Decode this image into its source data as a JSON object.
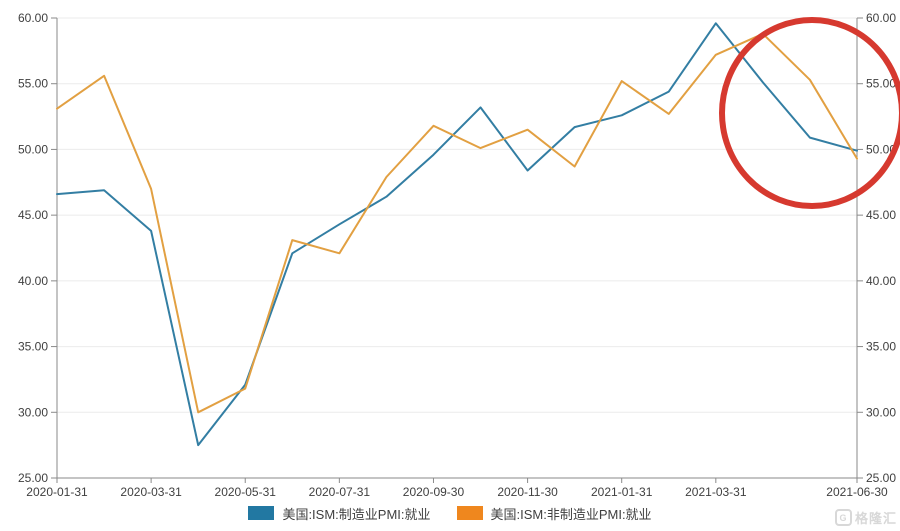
{
  "chart_data": {
    "type": "line",
    "x": [
      "2020-01-31",
      "2020-02-29",
      "2020-03-31",
      "2020-04-30",
      "2020-05-31",
      "2020-06-30",
      "2020-07-31",
      "2020-08-31",
      "2020-09-30",
      "2020-10-31",
      "2020-11-30",
      "2020-12-31",
      "2021-01-31",
      "2021-02-28",
      "2021-03-31",
      "2021-04-30",
      "2021-05-31",
      "2021-06-30"
    ],
    "series": [
      {
        "name": "美国:ISM:制造业PMI:就业",
        "line_color": "#337ea3",
        "swatch_color": "#2278a2",
        "values": [
          46.6,
          46.9,
          43.8,
          27.5,
          32.1,
          42.1,
          44.3,
          46.4,
          49.6,
          53.2,
          48.4,
          51.7,
          52.6,
          54.4,
          59.6,
          55.1,
          50.9,
          49.9
        ]
      },
      {
        "name": "美国:ISM:非制造业PMI:就业",
        "line_color": "#e2a042",
        "swatch_color": "#ef871e",
        "values": [
          53.1,
          55.6,
          47.0,
          30.0,
          31.8,
          43.1,
          42.1,
          47.9,
          51.8,
          50.1,
          51.5,
          48.7,
          55.2,
          52.7,
          57.2,
          58.8,
          55.3,
          49.3
        ]
      }
    ],
    "ylim": [
      25,
      60
    ],
    "y_tick_values": [
      60,
      55,
      50,
      45,
      40,
      35,
      30,
      25
    ],
    "y_tick_labels": [
      "60.00",
      "55.00",
      "50.00",
      "45.00",
      "40.00",
      "35.00",
      "30.00",
      "25.00"
    ],
    "x_tick_indices": [
      0,
      2,
      4,
      6,
      8,
      10,
      12,
      14,
      17
    ],
    "x_tick_labels": [
      "2020-01-31",
      "2020-03-31",
      "2020-05-31",
      "2020-07-31",
      "2020-09-30",
      "2020-11-30",
      "2021-01-31",
      "2021-03-31",
      "2021-06-30"
    ],
    "grid": "horizontal",
    "dual_y_axis": true,
    "legend_position": "bottom",
    "title": "",
    "xlabel": "",
    "ylabel": "",
    "annotation": {
      "type": "ellipse",
      "color": "#d6392f"
    }
  },
  "watermark": {
    "logo_letter": "G",
    "text": "格隆汇"
  },
  "colors": {
    "background": "#ffffff",
    "axis": "#8a8a8a",
    "grid": "#ebebeb",
    "label": "#404040",
    "annotation_red": "#d6392f"
  }
}
